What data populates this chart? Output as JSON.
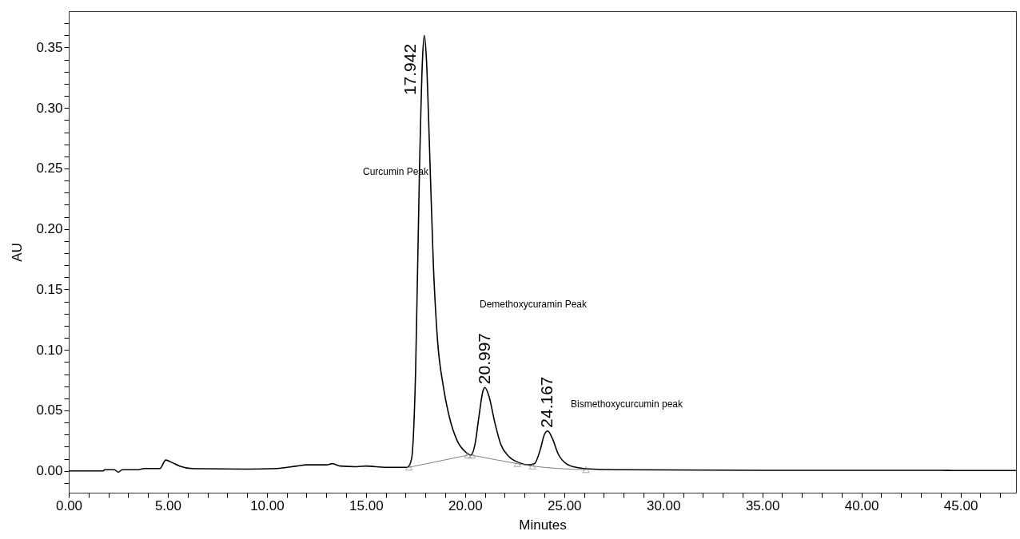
{
  "chart_data": {
    "type": "line",
    "xlabel": "Minutes",
    "ylabel": "AU",
    "xlim": [
      0,
      47.8
    ],
    "ylim": [
      -0.018,
      0.38
    ],
    "xticks": [
      {
        "value": 0,
        "label": "0.00"
      },
      {
        "value": 1,
        "label": null
      },
      {
        "value": 2,
        "label": null
      },
      {
        "value": 3,
        "label": null
      },
      {
        "value": 4,
        "label": null
      },
      {
        "value": 5,
        "label": "5.00"
      },
      {
        "value": 6,
        "label": null
      },
      {
        "value": 7,
        "label": null
      },
      {
        "value": 8,
        "label": null
      },
      {
        "value": 9,
        "label": null
      },
      {
        "value": 10,
        "label": "10.00"
      },
      {
        "value": 11,
        "label": null
      },
      {
        "value": 12,
        "label": null
      },
      {
        "value": 13,
        "label": null
      },
      {
        "value": 14,
        "label": null
      },
      {
        "value": 15,
        "label": "15.00"
      },
      {
        "value": 16,
        "label": null
      },
      {
        "value": 17,
        "label": null
      },
      {
        "value": 18,
        "label": null
      },
      {
        "value": 19,
        "label": null
      },
      {
        "value": 20,
        "label": "20.00"
      },
      {
        "value": 21,
        "label": null
      },
      {
        "value": 22,
        "label": null
      },
      {
        "value": 23,
        "label": null
      },
      {
        "value": 24,
        "label": null
      },
      {
        "value": 25,
        "label": "25.00"
      },
      {
        "value": 26,
        "label": null
      },
      {
        "value": 27,
        "label": null
      },
      {
        "value": 28,
        "label": null
      },
      {
        "value": 29,
        "label": null
      },
      {
        "value": 30,
        "label": "30.00"
      },
      {
        "value": 31,
        "label": null
      },
      {
        "value": 32,
        "label": null
      },
      {
        "value": 33,
        "label": null
      },
      {
        "value": 34,
        "label": null
      },
      {
        "value": 35,
        "label": "35.00"
      },
      {
        "value": 36,
        "label": null
      },
      {
        "value": 37,
        "label": null
      },
      {
        "value": 38,
        "label": null
      },
      {
        "value": 39,
        "label": null
      },
      {
        "value": 40,
        "label": "40.00"
      },
      {
        "value": 41,
        "label": null
      },
      {
        "value": 42,
        "label": null
      },
      {
        "value": 43,
        "label": null
      },
      {
        "value": 44,
        "label": null
      },
      {
        "value": 45,
        "label": "45.00"
      },
      {
        "value": 46,
        "label": null
      },
      {
        "value": 47,
        "label": null
      }
    ],
    "yticks": [
      {
        "value": -0.01,
        "label": null
      },
      {
        "value": 0,
        "label": "0.00"
      },
      {
        "value": 0.01,
        "label": null
      },
      {
        "value": 0.02,
        "label": null
      },
      {
        "value": 0.03,
        "label": null
      },
      {
        "value": 0.04,
        "label": null
      },
      {
        "value": 0.05,
        "label": "0.05"
      },
      {
        "value": 0.06,
        "label": null
      },
      {
        "value": 0.07,
        "label": null
      },
      {
        "value": 0.08,
        "label": null
      },
      {
        "value": 0.09,
        "label": null
      },
      {
        "value": 0.1,
        "label": "0.10"
      },
      {
        "value": 0.11,
        "label": null
      },
      {
        "value": 0.12,
        "label": null
      },
      {
        "value": 0.13,
        "label": null
      },
      {
        "value": 0.14,
        "label": null
      },
      {
        "value": 0.15,
        "label": "0.15"
      },
      {
        "value": 0.16,
        "label": null
      },
      {
        "value": 0.17,
        "label": null
      },
      {
        "value": 0.18,
        "label": null
      },
      {
        "value": 0.19,
        "label": null
      },
      {
        "value": 0.2,
        "label": "0.20"
      },
      {
        "value": 0.21,
        "label": null
      },
      {
        "value": 0.22,
        "label": null
      },
      {
        "value": 0.23,
        "label": null
      },
      {
        "value": 0.24,
        "label": null
      },
      {
        "value": 0.25,
        "label": "0.25"
      },
      {
        "value": 0.26,
        "label": null
      },
      {
        "value": 0.27,
        "label": null
      },
      {
        "value": 0.28,
        "label": null
      },
      {
        "value": 0.29,
        "label": null
      },
      {
        "value": 0.3,
        "label": "0.30"
      },
      {
        "value": 0.31,
        "label": null
      },
      {
        "value": 0.32,
        "label": null
      },
      {
        "value": 0.33,
        "label": null
      },
      {
        "value": 0.34,
        "label": null
      },
      {
        "value": 0.35,
        "label": "0.35"
      },
      {
        "value": 0.36,
        "label": null
      },
      {
        "value": 0.37,
        "label": null
      }
    ],
    "grid": false,
    "series": [
      {
        "color": "#000000",
        "x": [
          0,
          1.75,
          1.8,
          2.3,
          2.5,
          2.7,
          3.5,
          3.8,
          4.4,
          4.6,
          4.9,
          5.2,
          5.6,
          6.2,
          9,
          10.5,
          11.5,
          12,
          13,
          13.3,
          13.7,
          14.5,
          15,
          16,
          17.1,
          17.3,
          17.5,
          17.7,
          17.85,
          17.94,
          18.05,
          18.2,
          18.4,
          18.6,
          18.9,
          19.2,
          19.6,
          20.0,
          20.3,
          20.5,
          20.7,
          20.9,
          21.0,
          21.2,
          21.5,
          21.8,
          22.2,
          22.7,
          23.2,
          23.5,
          23.8,
          24.0,
          24.17,
          24.4,
          24.7,
          25.1,
          25.6,
          26.5,
          28,
          35,
          44,
          44.7,
          47.8
        ],
        "values": [
          0,
          0,
          0.001,
          0.001,
          -0.001,
          0.001,
          0.001,
          0.002,
          0.002,
          0.002,
          0.009,
          0.007,
          0.004,
          0.002,
          0.0015,
          0.002,
          0.004,
          0.005,
          0.005,
          0.006,
          0.004,
          0.0035,
          0.004,
          0.003,
          0.003,
          0.01,
          0.08,
          0.25,
          0.34,
          0.36,
          0.34,
          0.27,
          0.17,
          0.11,
          0.07,
          0.045,
          0.025,
          0.016,
          0.013,
          0.022,
          0.045,
          0.066,
          0.069,
          0.062,
          0.04,
          0.022,
          0.012,
          0.007,
          0.005,
          0.006,
          0.018,
          0.03,
          0.033,
          0.027,
          0.014,
          0.006,
          0.003,
          0.0015,
          0.001,
          0.0005,
          0.0005,
          0.0003,
          0.0003
        ]
      },
      {
        "type": "line",
        "marker": "triangle",
        "color": "#808080",
        "x": [
          17.17,
          20.14,
          20.25,
          20.35,
          22.64,
          23.4,
          26.1
        ],
        "values": [
          0.003,
          0.013,
          null,
          0.013,
          0.006,
          0.004,
          0.001
        ]
      }
    ],
    "annotations": [
      {
        "text": "17.942",
        "x": 17.942,
        "y": 0.308
      },
      {
        "text": "20.997",
        "x": 20.997,
        "y": 0.069
      },
      {
        "text": "24.167",
        "x": 24.167,
        "y": 0.033
      },
      "Curcumin Peak",
      "Demethoxycuramin Peak",
      "Bismethoxycurcumin peak"
    ]
  }
}
